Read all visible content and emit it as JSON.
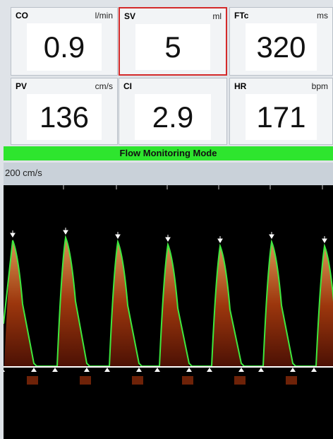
{
  "tiles": [
    {
      "label": "CO",
      "unit": "l/min",
      "value": "0.9"
    },
    {
      "label": "SV",
      "unit": "ml",
      "value": "5"
    },
    {
      "label": "FTc",
      "unit": "ms",
      "value": "320"
    },
    {
      "label": "PV",
      "unit": "cm/s",
      "value": "136"
    },
    {
      "label": "CI",
      "unit": "",
      "value": "2.9"
    },
    {
      "label": "HR",
      "unit": "bpm",
      "value": "171"
    }
  ],
  "mode": "Flow Monitoring Mode",
  "scale": "200 cm/s"
}
